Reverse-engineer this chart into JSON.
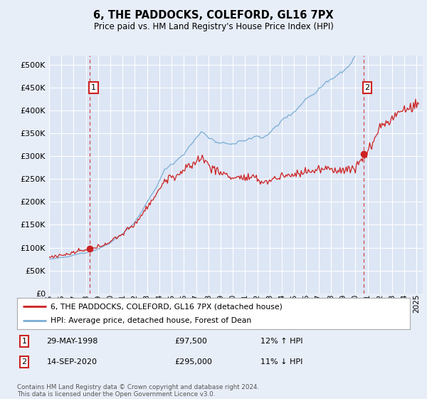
{
  "title": "6, THE PADDOCKS, COLEFORD, GL16 7PX",
  "subtitle": "Price paid vs. HM Land Registry's House Price Index (HPI)",
  "background_color": "#e8eef8",
  "plot_bg_color": "#dde6f5",
  "hpi_color": "#7aadd4",
  "price_color": "#cc2222",
  "legend_line1": "6, THE PADDOCKS, COLEFORD, GL16 7PX (detached house)",
  "legend_line2": "HPI: Average price, detached house, Forest of Dean",
  "footer": "Contains HM Land Registry data © Crown copyright and database right 2024.\nThis data is licensed under the Open Government Licence v3.0.",
  "ylim": [
    0,
    520000
  ],
  "yticks": [
    0,
    50000,
    100000,
    150000,
    200000,
    250000,
    300000,
    350000,
    400000,
    450000,
    500000
  ],
  "start_year": 1995,
  "end_year": 2025,
  "sale1_price": 97500,
  "sale1_label": "29-MAY-1998",
  "sale1_note": "12% ↑ HPI",
  "sale2_price": 295000,
  "sale2_label": "14-SEP-2020",
  "sale2_note": "11% ↓ HPI"
}
